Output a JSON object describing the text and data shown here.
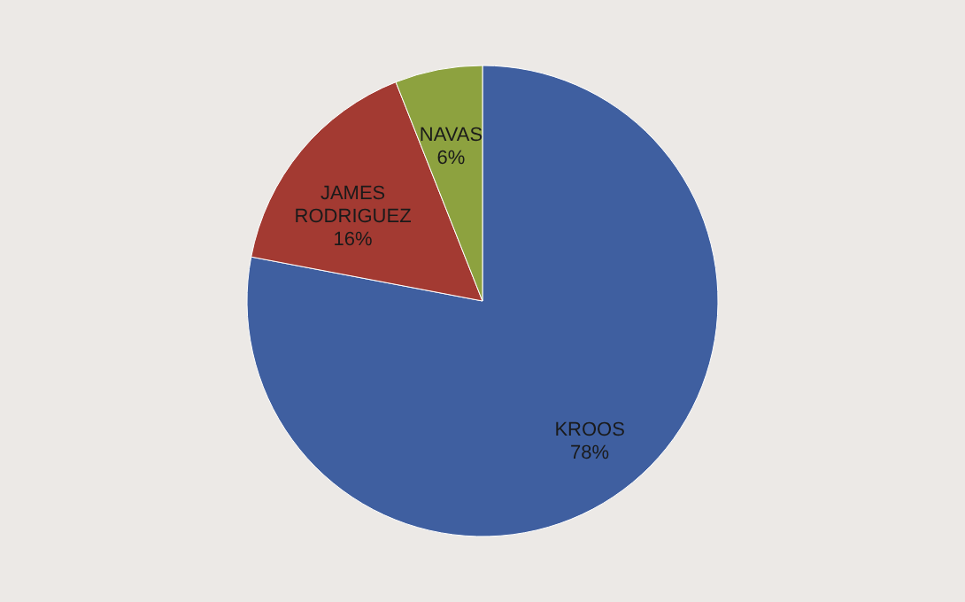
{
  "chart_data": {
    "type": "pie",
    "categories": [
      "KROOS",
      "JAMES RODRIGUEZ",
      "NAVAS"
    ],
    "values": [
      78,
      16,
      6
    ],
    "colors": [
      "#3f5fa0",
      "#a33a32",
      "#8da23f"
    ],
    "value_labels": [
      "78%",
      "16%",
      "6%"
    ]
  }
}
